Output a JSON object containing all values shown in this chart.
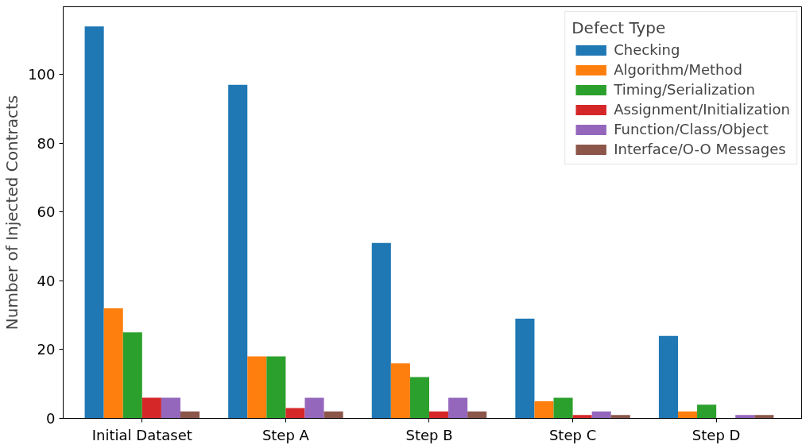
{
  "chart_data": {
    "type": "bar",
    "ylabel": "Number of Injected Contracts",
    "legend_title": "Defect Type",
    "categories": [
      "Initial Dataset",
      "Step A",
      "Step B",
      "Step C",
      "Step D"
    ],
    "series": [
      {
        "name": "Checking",
        "color": "#1f77b4",
        "values": [
          114,
          97,
          51,
          29,
          24
        ]
      },
      {
        "name": "Algorithm/Method",
        "color": "#ff7f0e",
        "values": [
          32,
          18,
          16,
          5,
          2
        ]
      },
      {
        "name": "Timing/Serialization",
        "color": "#2ca02c",
        "values": [
          25,
          18,
          12,
          6,
          4
        ]
      },
      {
        "name": "Assignment/Initialization",
        "color": "#d62728",
        "values": [
          6,
          3,
          2,
          1,
          0
        ]
      },
      {
        "name": "Function/Class/Object",
        "color": "#9467bd",
        "values": [
          6,
          6,
          6,
          2,
          1
        ]
      },
      {
        "name": "Interface/O-O Messages",
        "color": "#8c564b",
        "values": [
          2,
          2,
          2,
          1,
          1
        ]
      }
    ],
    "ylim": [
      0,
      119.7
    ],
    "yticks": [
      0,
      20,
      40,
      60,
      80,
      100
    ],
    "grid": false,
    "legend": "top right"
  }
}
